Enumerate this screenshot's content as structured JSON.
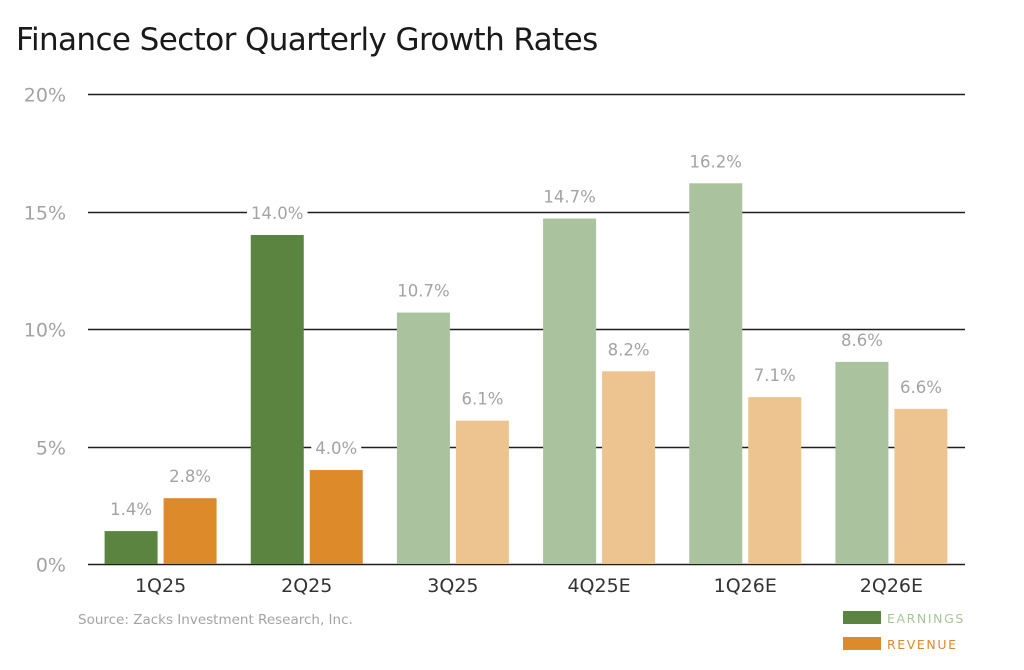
{
  "chart_data": {
    "type": "bar",
    "title": "Finance Sector Quarterly Growth Rates",
    "xlabel": "",
    "ylabel": "",
    "ylim": [
      0,
      20
    ],
    "yticks": [
      0,
      5,
      10,
      15,
      20
    ],
    "ytick_labels": [
      "0%",
      "5%",
      "10%",
      "15%",
      "20%"
    ],
    "grid": true,
    "categories": [
      "1Q25",
      "2Q25",
      "3Q25",
      "4Q25E",
      "1Q26E",
      "2Q26E"
    ],
    "estimate_flags": [
      false,
      false,
      true,
      true,
      true,
      true
    ],
    "series": [
      {
        "name": "EARNINGS",
        "values": [
          1.4,
          14.0,
          10.7,
          14.7,
          16.2,
          8.6
        ],
        "labels": [
          "1.4%",
          "14.0%",
          "10.7%",
          "14.7%",
          "16.2%",
          "8.6%"
        ],
        "color": "#5a8440",
        "estimate_color": "#aac29e",
        "legend_text_color": "#a9c49b"
      },
      {
        "name": "REVENUE",
        "values": [
          2.8,
          4.0,
          6.1,
          8.2,
          7.1,
          6.6
        ],
        "labels": [
          "2.8%",
          "4.0%",
          "6.1%",
          "8.2%",
          "7.1%",
          "6.6%"
        ],
        "color": "#dc8a2a",
        "estimate_color": "#edc390",
        "legend_text_color": "#dc8a2a"
      }
    ],
    "legend": {
      "placement": "bottom-right"
    },
    "source": "Source: Zacks Investment Research, Inc."
  }
}
